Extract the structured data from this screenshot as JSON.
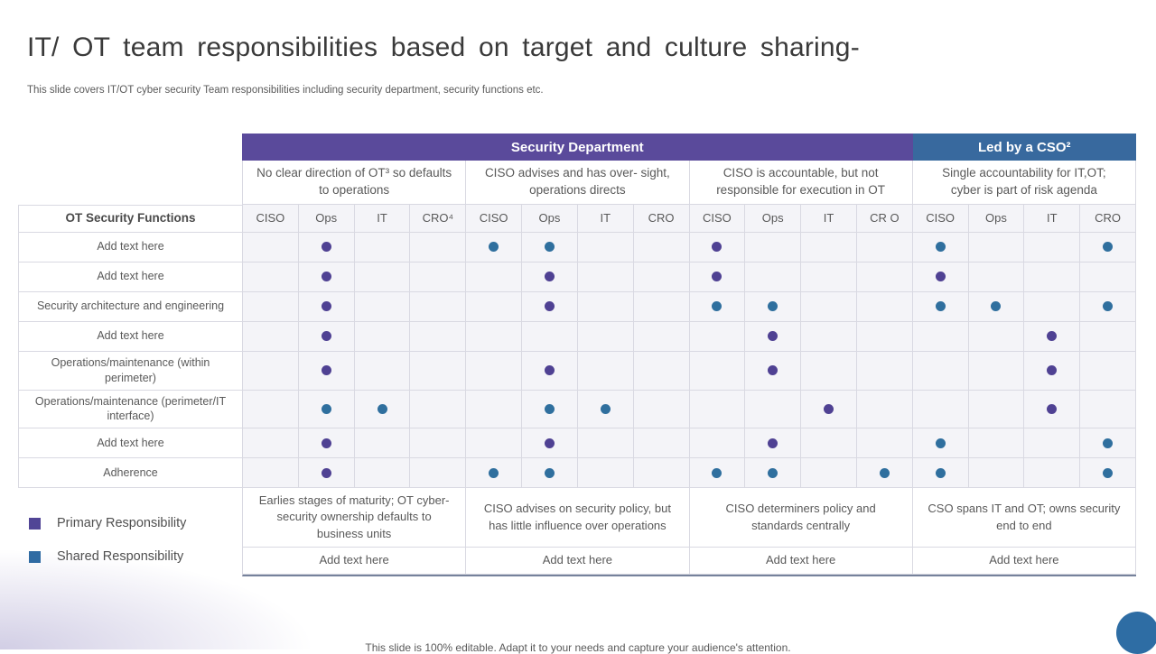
{
  "title": "IT/ OT team responsibilities based on target and culture sharing-",
  "subtitle": "This slide covers IT/OT  cyber security Team responsibilities including security department, security functions etc.",
  "colors": {
    "security_department_header": "#5a4a9b",
    "led_by_cso_header": "#38699e",
    "primary_responsibility": "#4f4193",
    "shared_responsibility": "#2f6f9e"
  },
  "table": {
    "functions_header": "OT Security Functions",
    "top_headers": [
      {
        "label": "Security Department"
      },
      {
        "label": "Led by a CSO²"
      }
    ],
    "groups": [
      {
        "description": "No clear direction of OT³ so defaults to operations",
        "columns": [
          "CISO",
          "Ops",
          "IT",
          "CRO⁴"
        ],
        "summary": "Earlies stages of maturity; OT cyber- security ownership defaults to business units",
        "add_text": "Add text here"
      },
      {
        "description": "CISO advises and has over- sight, operations directs",
        "columns": [
          "CISO",
          "Ops",
          "IT",
          "CRO"
        ],
        "summary": "CISO advises on security policy, but has little influence over operations",
        "add_text": "Add text here"
      },
      {
        "description": "CISO is accountable, but not responsible for execution in OT",
        "columns": [
          "CISO",
          "Ops",
          "IT",
          "CR O"
        ],
        "summary": "CISO determiners policy and standards centrally",
        "add_text": "Add text here"
      },
      {
        "description": "Single accountability for IT,OT; cyber is part of risk agenda",
        "columns": [
          "CISO",
          "Ops",
          "IT",
          "CRO"
        ],
        "summary": "CSO spans IT and OT; owns security end to end",
        "add_text": "Add text here"
      }
    ],
    "rows": [
      {
        "label": "Add text here",
        "cells": [
          "",
          "P",
          "",
          "",
          "S",
          "S",
          "",
          "",
          "P",
          "",
          "",
          "",
          "S",
          "",
          "",
          "S"
        ]
      },
      {
        "label": "Add text here",
        "cells": [
          "",
          "P",
          "",
          "",
          "",
          "P",
          "",
          "",
          "P",
          "",
          "",
          "",
          "P",
          "",
          "",
          ""
        ]
      },
      {
        "label": "Security architecture and engineering",
        "cells": [
          "",
          "P",
          "",
          "",
          "",
          "P",
          "",
          "",
          "S",
          "S",
          "",
          "",
          "S",
          "S",
          "",
          "S"
        ]
      },
      {
        "label": "Add text here",
        "cells": [
          "",
          "P",
          "",
          "",
          "",
          "",
          "",
          "",
          "",
          "P",
          "",
          "",
          "",
          "",
          "P",
          ""
        ]
      },
      {
        "label": "Operations/maintenance (within perimeter)",
        "cells": [
          "",
          "P",
          "",
          "",
          "",
          "P",
          "",
          "",
          "",
          "P",
          "",
          "",
          "",
          "",
          "P",
          ""
        ]
      },
      {
        "label": "Operations/maintenance (perimeter/IT interface)",
        "cells": [
          "",
          "S",
          "S",
          "",
          "",
          "S",
          "S",
          "",
          "",
          "",
          "P",
          "",
          "",
          "",
          "P",
          ""
        ]
      },
      {
        "label": "Add text here",
        "cells": [
          "",
          "P",
          "",
          "",
          "",
          "P",
          "",
          "",
          "",
          "P",
          "",
          "",
          "S",
          "",
          "",
          "S"
        ]
      },
      {
        "label": "Adherence",
        "cells": [
          "",
          "P",
          "",
          "",
          "S",
          "S",
          "",
          "",
          "S",
          "S",
          "",
          "S",
          "S",
          "",
          "",
          "S"
        ]
      }
    ]
  },
  "legend": [
    {
      "type": "primary",
      "label": "Primary Responsibility"
    },
    {
      "type": "shared",
      "label": "Shared Responsibility"
    }
  ],
  "footer": "This slide is 100% editable. Adapt it to your needs and capture your audience's attention."
}
